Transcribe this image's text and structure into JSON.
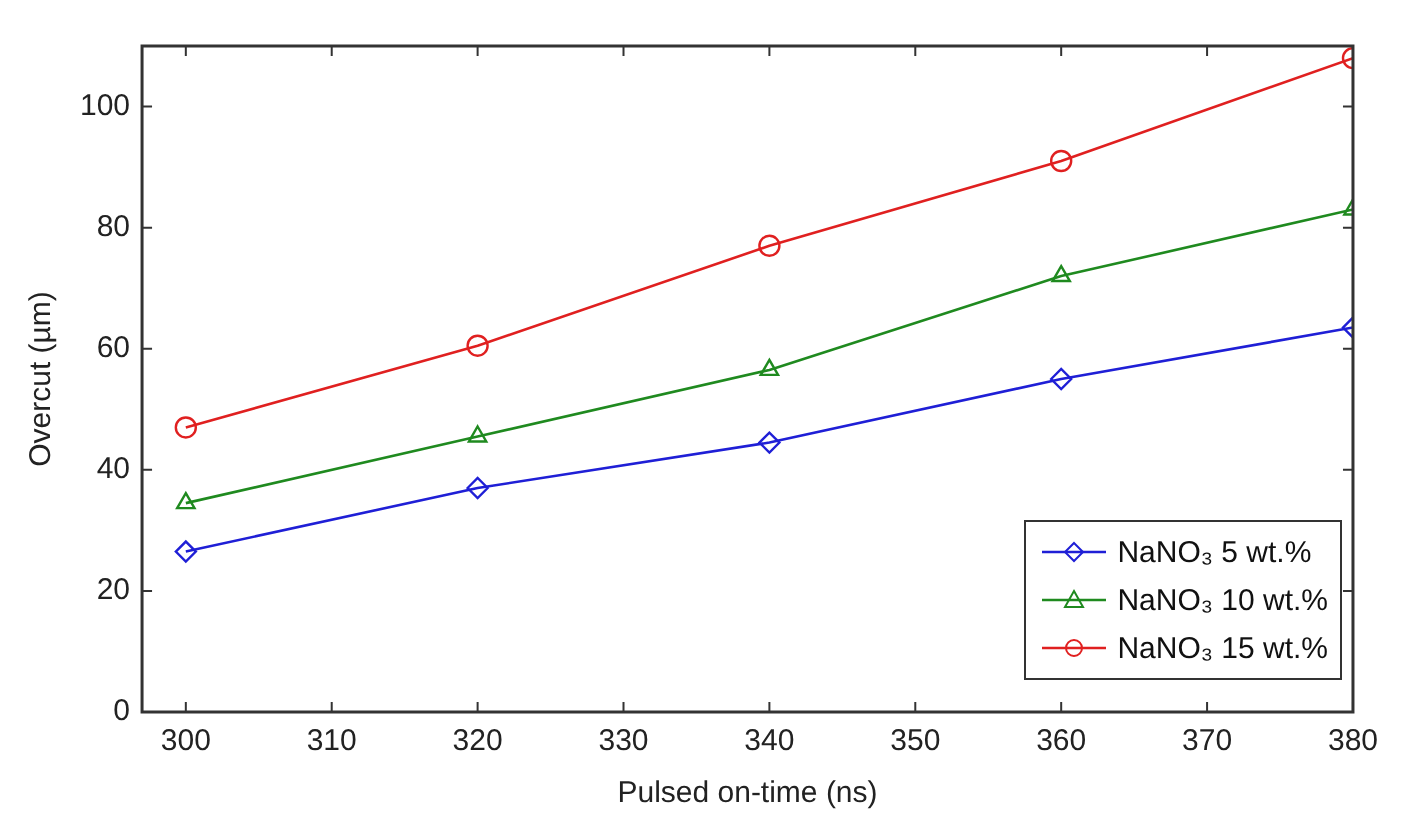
{
  "chart_data": {
    "type": "line",
    "xlabel": "Pulsed on-time (ns)",
    "ylabel": "Overcut (µm)",
    "x": [
      300,
      320,
      340,
      360,
      380
    ],
    "series": [
      {
        "name": "NaNO₃ 5 wt.%",
        "color": "#1f1fd6",
        "marker": "diamond",
        "values": [
          26.5,
          37,
          44.5,
          55,
          63.5
        ]
      },
      {
        "name": "NaNO₃ 10 wt.%",
        "color": "#1f8a1f",
        "marker": "triangle",
        "values": [
          34.5,
          45.5,
          56.5,
          72,
          83
        ]
      },
      {
        "name": "NaNO₃ 15 wt.%",
        "color": "#e02020",
        "marker": "circle",
        "values": [
          47,
          60.5,
          77,
          91,
          108
        ]
      }
    ],
    "xlim": [
      297,
      380
    ],
    "xticks": [
      300,
      310,
      320,
      330,
      340,
      350,
      360,
      370,
      380
    ],
    "ylim": [
      0,
      110
    ],
    "yticks": [
      0,
      20,
      40,
      60,
      80,
      100
    ],
    "grid": false,
    "legend": "bottom right",
    "line_style": "solid"
  }
}
